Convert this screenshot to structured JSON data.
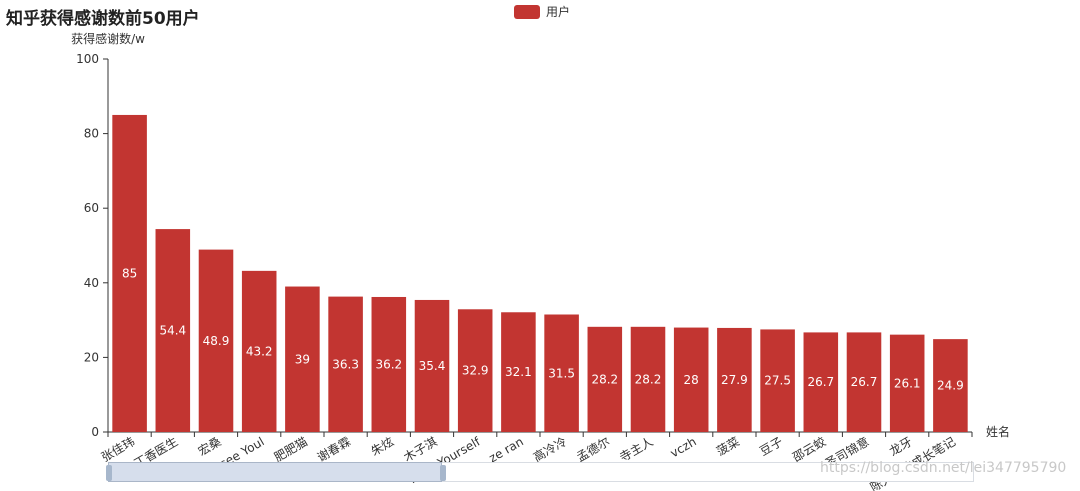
{
  "colors": {
    "bar": "#c23531",
    "bar_label": "#ffffff",
    "axis": "#333333",
    "text": "#333333"
  },
  "watermark": "https://blog.csdn.net/lei347795790",
  "chart_data": {
    "type": "bar",
    "title": "知乎获得感谢数前50用户",
    "ylabel": "获得感谢数/w",
    "xlabel": "姓名",
    "ylim": [
      0,
      100
    ],
    "yticks": [
      0,
      20,
      40,
      60,
      80,
      100
    ],
    "legend": {
      "position": "top-center",
      "entries": [
        "用户"
      ]
    },
    "grid": false,
    "categories": [
      "张佳玮",
      "丁香医生",
      "宏桑",
      "Seasee Youl",
      "肥肥猫",
      "谢春霖",
      "朱炫",
      "木子淇",
      "KnowYourself",
      "ze ran",
      "高冷冷",
      "孟德尔",
      "寺主人",
      "vczh",
      "菠菜",
      "豆子",
      "邵云蛟",
      "圣司锦意",
      "龙牙",
      "陈大大的成长笔记"
    ],
    "series": [
      {
        "name": "用户",
        "values": [
          85,
          54.4,
          48.9,
          43.2,
          39,
          36.3,
          36.2,
          35.4,
          32.9,
          32.1,
          31.5,
          28.2,
          28.2,
          28,
          27.9,
          27.5,
          26.7,
          26.7,
          26.1,
          24.9
        ]
      }
    ]
  }
}
